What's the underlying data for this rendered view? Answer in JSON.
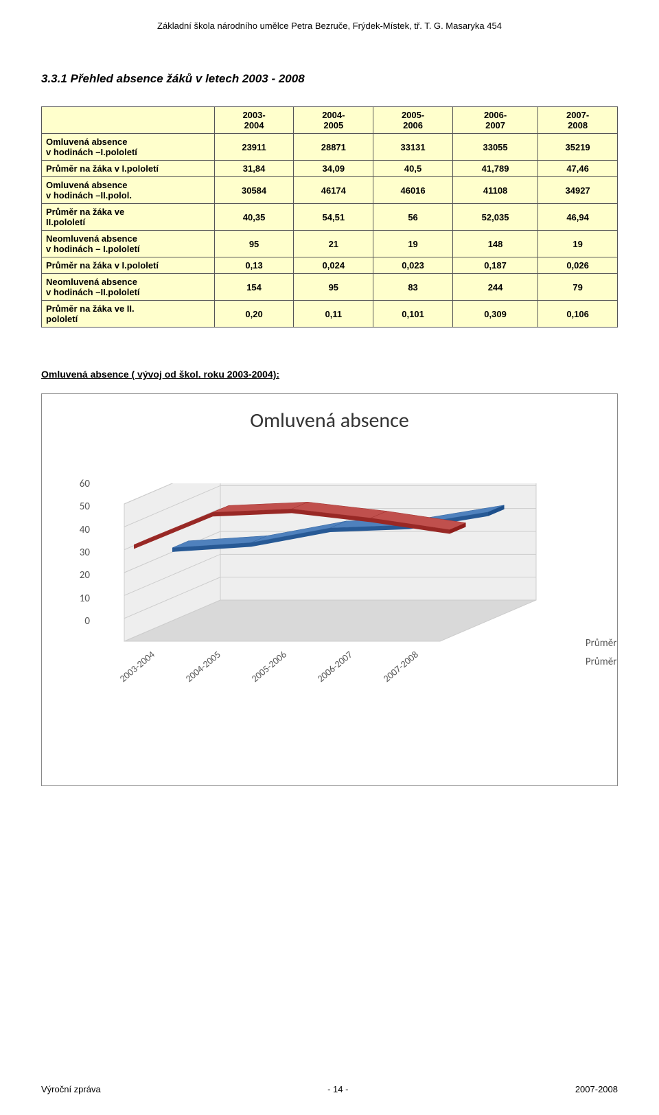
{
  "header": "Základní škola národního umělce Petra Bezruče, Frýdek-Místek, tř. T. G. Masaryka 454",
  "section_title": "3.3.1 Přehled absence žáků v letech 2003 - 2008",
  "table": {
    "columns": [
      "2003-\n2004",
      "2004-\n2005",
      "2005-\n2006",
      "2006-\n2007",
      "2007-\n2008"
    ],
    "rows": [
      {
        "label": "Omluvená absence\nv hodinách –I.pololetí",
        "values": [
          "23911",
          "28871",
          "33131",
          "33055",
          "35219"
        ]
      },
      {
        "label": "Průměr na žáka v I.pololetí",
        "values": [
          "31,84",
          "34,09",
          "40,5",
          "41,789",
          "47,46"
        ]
      },
      {
        "label": "Omluvená absence\nv hodinách –II.polol.",
        "values": [
          "30584",
          "46174",
          "46016",
          "41108",
          "34927"
        ]
      },
      {
        "label": "Průměr na žáka ve\nII.pololetí",
        "values": [
          "40,35",
          "54,51",
          "56",
          "52,035",
          "46,94"
        ]
      },
      {
        "label": "Neomluvená absence\nv hodinách – I.pololetí",
        "values": [
          "95",
          "21",
          "19",
          "148",
          "19"
        ]
      },
      {
        "label": "Průměr na žáka v I.pololetí",
        "values": [
          "0,13",
          "0,024",
          "0,023",
          "0,187",
          "0,026"
        ]
      },
      {
        "label": "Neomluvená absence\nv hodinách –II.pololetí",
        "values": [
          "154",
          "95",
          "83",
          "244",
          "79"
        ]
      },
      {
        "label": "Průměr na žáka ve II.\npololetí",
        "values": [
          "0,20",
          "0,11",
          "0,101",
          "0,309",
          "0,106"
        ]
      }
    ],
    "header_bg": "#ffffcc",
    "cell_bg": "#ffffcc",
    "border_color": "#555555"
  },
  "subheading": "Omluvená absence ( vývoj od škol. roku 2003-2004):",
  "chart": {
    "title": "Omluvená absence",
    "type": "3d-area-line",
    "categories": [
      "2003-2004",
      "2004-2005",
      "2005-2006",
      "2006-2007",
      "2007-2008"
    ],
    "series": [
      {
        "name": "Průměr na žáka ve II.polo",
        "values": [
          40.35,
          54.51,
          56,
          52.035,
          46.94
        ],
        "color": "#c0504d"
      },
      {
        "name": "Průměr na žáka v I.pololet",
        "values": [
          31.84,
          34.09,
          40.5,
          41.789,
          47.46
        ],
        "color": "#4f81bd"
      }
    ],
    "ylim": [
      0,
      60
    ],
    "ytick_step": 10,
    "yticks": [
      "0",
      "10",
      "20",
      "30",
      "40",
      "50",
      "60"
    ],
    "title_fontsize": 30,
    "axis_fontsize": 15,
    "grid_color": "#cccccc",
    "floor_color": "#d9d9d9",
    "wall_color": "#eeeeee"
  },
  "footer": {
    "left": "Výroční zpráva",
    "center": "- 14 -",
    "right": "2007-2008"
  }
}
